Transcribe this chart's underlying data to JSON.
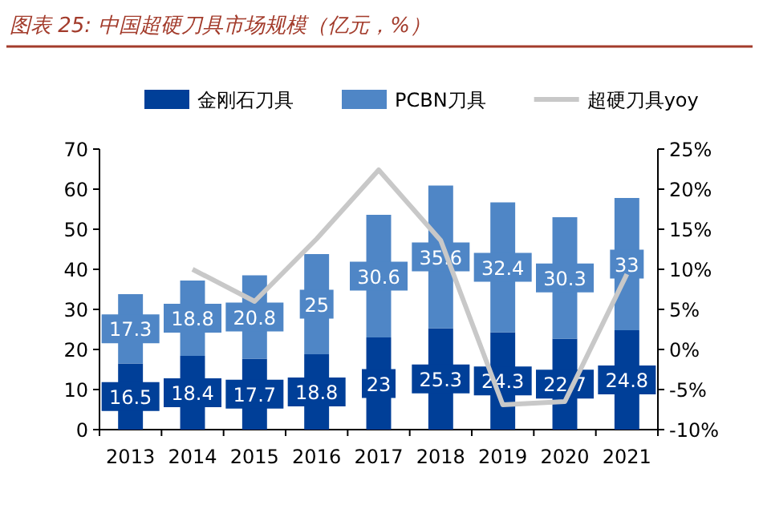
{
  "chart_data": {
    "type": "bar",
    "title": "图表 25:  中国超硬刀具市场规模（亿元，%）",
    "stacked": true,
    "categories": [
      "2013",
      "2014",
      "2015",
      "2016",
      "2017",
      "2018",
      "2019",
      "2020",
      "2021"
    ],
    "series": [
      {
        "name": "金刚石刀具",
        "color": "#003f98",
        "values": [
          16.5,
          18.4,
          17.7,
          18.8,
          23,
          25.3,
          24.3,
          22.7,
          24.8
        ],
        "value_labels": [
          "16.5",
          "18.4",
          "17.7",
          "18.8",
          "23",
          "25.3",
          "24.3",
          "22.7",
          "24.8"
        ]
      },
      {
        "name": "PCBN刀具",
        "color": "#4f86c6",
        "values": [
          17.3,
          18.8,
          20.8,
          25,
          30.6,
          35.6,
          32.4,
          30.3,
          33
        ],
        "value_labels": [
          "17.3",
          "18.8",
          "20.8",
          "25",
          "30.6",
          "35.6",
          "32.4",
          "30.3",
          "33"
        ]
      },
      {
        "name": "超硬刀具yoy",
        "type": "line",
        "axis": "y2",
        "color": "#c8c8c8",
        "values": [
          null,
          10,
          6,
          13.8,
          22.4,
          13.6,
          -6.9,
          -6.5,
          9.4
        ]
      }
    ],
    "legend": "top",
    "ylim": [
      0,
      70
    ],
    "yticks": [
      0,
      10,
      20,
      30,
      40,
      50,
      60,
      70
    ],
    "y2lim": [
      -10,
      25
    ],
    "y2ticks": [
      {
        "value": -10,
        "label": "-10%"
      },
      {
        "value": -5,
        "label": "-5%"
      },
      {
        "value": 0,
        "label": "0%"
      },
      {
        "value": 5,
        "label": "5%"
      },
      {
        "value": 10,
        "label": "10%"
      },
      {
        "value": 15,
        "label": "15%"
      },
      {
        "value": 20,
        "label": "20%"
      },
      {
        "value": 25,
        "label": "25%"
      }
    ]
  }
}
